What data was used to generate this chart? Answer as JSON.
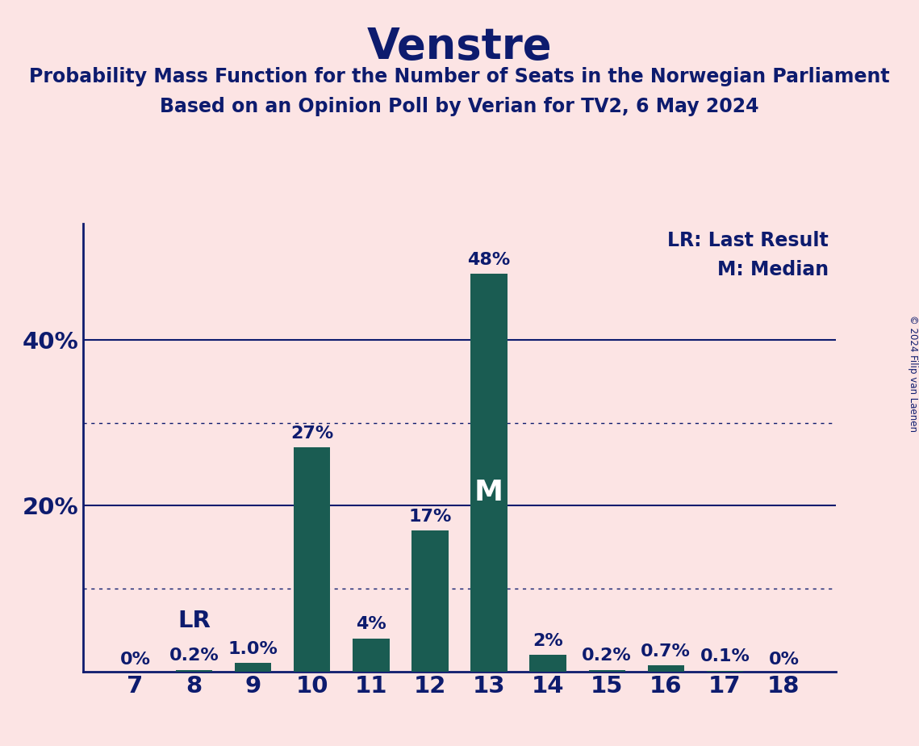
{
  "title": "Venstre",
  "subtitle1": "Probability Mass Function for the Number of Seats in the Norwegian Parliament",
  "subtitle2": "Based on an Opinion Poll by Verian for TV2, 6 May 2024",
  "copyright": "© 2024 Filip van Laenen",
  "categories": [
    7,
    8,
    9,
    10,
    11,
    12,
    13,
    14,
    15,
    16,
    17,
    18
  ],
  "values": [
    0.0,
    0.2,
    1.0,
    27.0,
    4.0,
    17.0,
    48.0,
    2.0,
    0.2,
    0.7,
    0.1,
    0.0
  ],
  "labels": [
    "0%",
    "0.2%",
    "1.0%",
    "27%",
    "4%",
    "17%",
    "48%",
    "2%",
    "0.2%",
    "0.7%",
    "0.1%",
    "0%"
  ],
  "bar_color": "#1a5c52",
  "background_color": "#fce4e4",
  "text_color": "#0d1b6e",
  "median_seat": 13,
  "last_result_seat": 8,
  "legend_lr": "LR: Last Result",
  "legend_m": "M: Median",
  "solid_gridlines": [
    20,
    40
  ],
  "dotted_gridlines": [
    10,
    30
  ],
  "ylim": [
    0,
    54
  ],
  "bar_width": 0.62
}
